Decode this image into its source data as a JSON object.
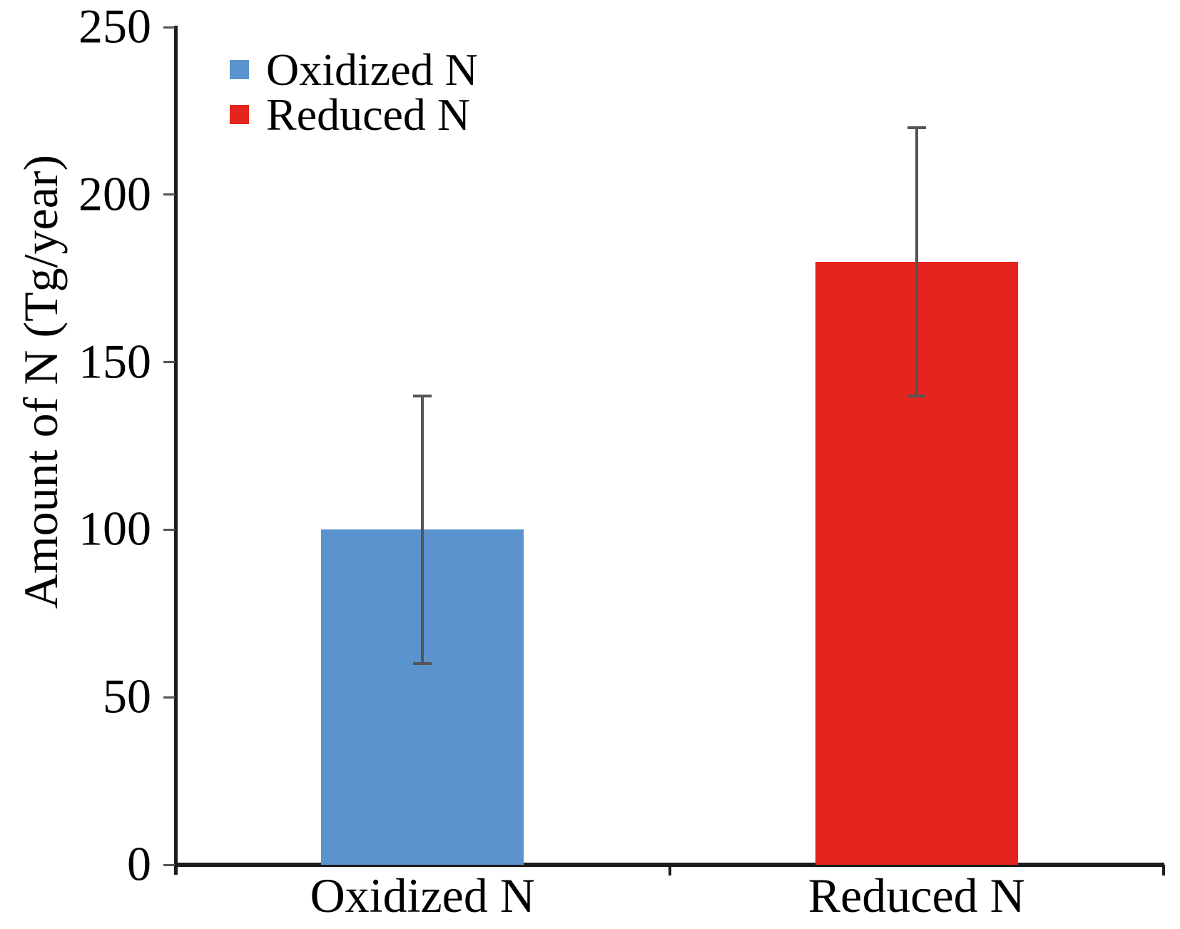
{
  "chart_data": {
    "type": "bar",
    "title": "",
    "xlabel": "",
    "ylabel": "Amount of N (Tg/year)",
    "categories": [
      "Oxidized N",
      "Reduced N"
    ],
    "values": [
      100,
      180
    ],
    "bars": [
      {
        "label": "Oxidized N",
        "value": 100,
        "error_low": 60,
        "error_high": 140,
        "color": "#5B93CE"
      },
      {
        "label": "Reduced N",
        "value": 180,
        "error_low": 140,
        "error_high": 220,
        "color": "#E5251D"
      }
    ],
    "yticks": [
      0,
      50,
      100,
      150,
      200,
      250
    ],
    "ytick_labels": [
      "0",
      "50",
      "100",
      "150",
      "200",
      "250"
    ],
    "ylim": [
      0,
      250
    ],
    "grid": false,
    "legend_position": "top-left",
    "legend": [
      {
        "label": "Oxidized N",
        "color": "#5B93CE"
      },
      {
        "label": "Reduced N",
        "color": "#E5251D"
      }
    ],
    "colors": {
      "axis": "#1c1c1c",
      "error_bar": "#555555",
      "text": "#000000",
      "oxidized_n": "#5B93CE",
      "reduced_n": "#E5251D"
    }
  }
}
